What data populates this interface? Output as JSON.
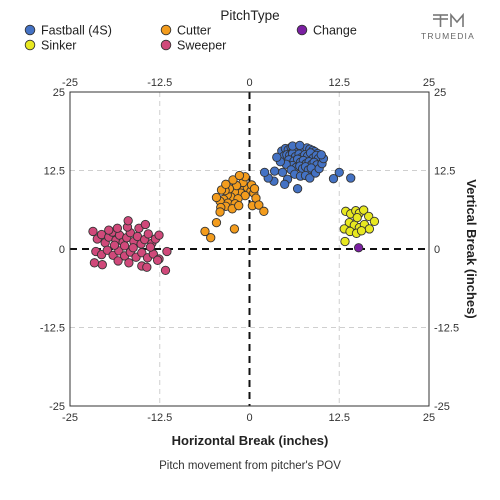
{
  "chart_data": {
    "type": "scatter",
    "xlabel": "Horizontal Break (inches)",
    "ylabel": "Vertical Break (inches)",
    "caption": "Pitch movement from pitcher's POV",
    "xlim": [
      -25,
      25
    ],
    "ylim": [
      -25,
      25
    ],
    "ticks": [
      -25,
      -12.5,
      0,
      12.5,
      25
    ],
    "tick_labels": [
      "-25",
      "-12.5",
      "0",
      "12.5",
      "25"
    ],
    "grid": true,
    "zero_lines": "dashed",
    "legend": {
      "title": "PitchType",
      "placement": "top",
      "entries": [
        "Fastball (4S)",
        "Cutter",
        "Change",
        "Sinker",
        "Sweeper"
      ]
    },
    "series": [
      {
        "name": "Fastball (4S)",
        "color": "#4472c4",
        "points": [
          [
            4.5,
            15.6
          ],
          [
            5.0,
            16.0
          ],
          [
            5.4,
            15.8
          ],
          [
            5.8,
            16.2
          ],
          [
            6.1,
            15.7
          ],
          [
            6.5,
            16.1
          ],
          [
            6.8,
            15.9
          ],
          [
            7.2,
            16.0
          ],
          [
            7.6,
            15.8
          ],
          [
            8.0,
            16.1
          ],
          [
            8.4,
            15.9
          ],
          [
            8.8,
            15.7
          ],
          [
            9.1,
            15.5
          ],
          [
            9.5,
            15.2
          ],
          [
            4.8,
            14.8
          ],
          [
            5.2,
            15.0
          ],
          [
            5.6,
            14.9
          ],
          [
            6.0,
            15.2
          ],
          [
            6.4,
            14.7
          ],
          [
            6.9,
            15.1
          ],
          [
            7.3,
            14.6
          ],
          [
            7.7,
            15.0
          ],
          [
            8.1,
            14.8
          ],
          [
            8.5,
            15.3
          ],
          [
            8.9,
            14.5
          ],
          [
            9.3,
            14.9
          ],
          [
            9.6,
            14.4
          ],
          [
            5.5,
            14.2
          ],
          [
            6.2,
            14.0
          ],
          [
            6.7,
            14.3
          ],
          [
            7.1,
            13.8
          ],
          [
            7.5,
            14.1
          ],
          [
            7.9,
            13.6
          ],
          [
            8.3,
            13.9
          ],
          [
            8.7,
            13.5
          ],
          [
            9.0,
            13.8
          ],
          [
            9.4,
            13.4
          ],
          [
            6.0,
            13.3
          ],
          [
            6.5,
            13.0
          ],
          [
            7.0,
            13.2
          ],
          [
            7.4,
            12.8
          ],
          [
            7.8,
            13.1
          ],
          [
            8.2,
            12.6
          ],
          [
            8.6,
            12.9
          ],
          [
            5.1,
            13.5
          ],
          [
            4.3,
            13.9
          ],
          [
            3.8,
            14.6
          ],
          [
            3.5,
            12.4
          ],
          [
            4.6,
            12.2
          ],
          [
            5.8,
            12.6
          ],
          [
            6.3,
            11.9
          ],
          [
            7.1,
            11.6
          ],
          [
            7.8,
            11.7
          ],
          [
            8.4,
            11.3
          ],
          [
            9.2,
            12.1
          ],
          [
            9.7,
            12.8
          ],
          [
            10.1,
            13.6
          ],
          [
            10.3,
            14.4
          ],
          [
            10.0,
            15.0
          ],
          [
            5.3,
            11.1
          ],
          [
            3.4,
            10.8
          ],
          [
            2.6,
            11.3
          ],
          [
            2.1,
            12.2
          ],
          [
            4.9,
            10.3
          ],
          [
            6.7,
            9.6
          ],
          [
            11.7,
            11.2
          ],
          [
            12.5,
            12.2
          ],
          [
            14.1,
            11.3
          ],
          [
            6.0,
            16.4
          ],
          [
            7.0,
            16.5
          ]
        ]
      },
      {
        "name": "Cutter",
        "color": "#f39c1d",
        "points": [
          [
            -0.8,
            9.4
          ],
          [
            -0.3,
            9.8
          ],
          [
            0.2,
            9.2
          ],
          [
            -1.2,
            8.9
          ],
          [
            -0.6,
            8.5
          ],
          [
            0.6,
            8.9
          ],
          [
            -2.1,
            9.1
          ],
          [
            -2.6,
            8.3
          ],
          [
            -1.6,
            8.0
          ],
          [
            -3.1,
            8.6
          ],
          [
            -3.6,
            7.9
          ],
          [
            -3.0,
            7.3
          ],
          [
            -2.0,
            7.2
          ],
          [
            -4.1,
            7.6
          ],
          [
            -4.6,
            8.2
          ],
          [
            -3.3,
            6.8
          ],
          [
            -4.0,
            6.6
          ],
          [
            -2.4,
            6.4
          ],
          [
            -1.5,
            6.9
          ],
          [
            0.4,
            6.9
          ],
          [
            0.9,
            8.1
          ],
          [
            1.3,
            7.0
          ],
          [
            2.0,
            6.0
          ],
          [
            -0.9,
            10.6
          ],
          [
            -1.8,
            10.1
          ],
          [
            -2.8,
            9.6
          ],
          [
            -3.4,
            9.3
          ],
          [
            0.3,
            10.2
          ],
          [
            -2.3,
            11.0
          ],
          [
            -0.6,
            11.5
          ],
          [
            -1.4,
            11.7
          ],
          [
            -4.1,
            5.9
          ],
          [
            -4.6,
            4.2
          ],
          [
            -2.1,
            3.2
          ],
          [
            -6.2,
            2.8
          ],
          [
            -5.4,
            1.8
          ],
          [
            0.7,
            9.6
          ],
          [
            -3.9,
            9.4
          ],
          [
            -3.3,
            10.3
          ]
        ]
      },
      {
        "name": "Change",
        "color": "#7b1fa2",
        "points": [
          [
            15.2,
            0.2
          ]
        ]
      },
      {
        "name": "Sinker",
        "color": "#e8e820",
        "points": [
          [
            13.4,
            6.0
          ],
          [
            14.1,
            5.6
          ],
          [
            14.8,
            6.1
          ],
          [
            15.3,
            5.7
          ],
          [
            15.9,
            6.2
          ],
          [
            16.6,
            5.2
          ],
          [
            13.9,
            4.2
          ],
          [
            14.6,
            3.8
          ],
          [
            15.3,
            3.4
          ],
          [
            16.0,
            3.9
          ],
          [
            16.7,
            3.2
          ],
          [
            13.2,
            3.2
          ],
          [
            14.0,
            2.8
          ],
          [
            14.9,
            2.5
          ],
          [
            15.6,
            2.9
          ],
          [
            13.3,
            1.2
          ],
          [
            17.4,
            4.4
          ],
          [
            15.0,
            5.0
          ]
        ]
      },
      {
        "name": "Sweeper",
        "color": "#d0497a",
        "points": [
          [
            -21.8,
            2.8
          ],
          [
            -21.2,
            1.6
          ],
          [
            -20.6,
            2.3
          ],
          [
            -20.1,
            1.0
          ],
          [
            -19.6,
            1.9
          ],
          [
            -19.1,
            2.7
          ],
          [
            -18.6,
            1.4
          ],
          [
            -18.1,
            2.2
          ],
          [
            -17.6,
            1.1
          ],
          [
            -17.1,
            1.8
          ],
          [
            -16.6,
            2.6
          ],
          [
            -16.1,
            1.2
          ],
          [
            -15.6,
            2.0
          ],
          [
            -15.1,
            0.8
          ],
          [
            -14.6,
            1.5
          ],
          [
            -14.1,
            2.4
          ],
          [
            -13.6,
            0.9
          ],
          [
            -13.1,
            1.6
          ],
          [
            -12.6,
            2.2
          ],
          [
            -21.4,
            -0.4
          ],
          [
            -20.6,
            -0.9
          ],
          [
            -19.8,
            -0.2
          ],
          [
            -19.0,
            -1.0
          ],
          [
            -18.2,
            -0.3
          ],
          [
            -17.4,
            -1.1
          ],
          [
            -16.6,
            -0.5
          ],
          [
            -15.8,
            -1.3
          ],
          [
            -15.0,
            -0.6
          ],
          [
            -14.2,
            -1.4
          ],
          [
            -13.4,
            -0.8
          ],
          [
            -12.6,
            -1.6
          ],
          [
            -17.0,
            3.5
          ],
          [
            -16.9,
            4.5
          ],
          [
            -15.4,
            3.3
          ],
          [
            -14.5,
            3.9
          ],
          [
            -18.4,
            3.3
          ],
          [
            -19.6,
            3.0
          ],
          [
            -21.6,
            -2.2
          ],
          [
            -20.5,
            -2.5
          ],
          [
            -18.3,
            -1.9
          ],
          [
            -16.8,
            -2.2
          ],
          [
            -15.0,
            -2.7
          ],
          [
            -14.3,
            -2.9
          ],
          [
            -12.8,
            -1.8
          ],
          [
            -11.7,
            -3.4
          ],
          [
            -11.5,
            -0.4
          ],
          [
            -17.4,
            0.5
          ],
          [
            -16.2,
            0.2
          ],
          [
            -18.8,
            0.6
          ],
          [
            -13.8,
            0.3
          ]
        ]
      }
    ]
  },
  "logo": {
    "wordmark": "TRUMEDIA"
  }
}
